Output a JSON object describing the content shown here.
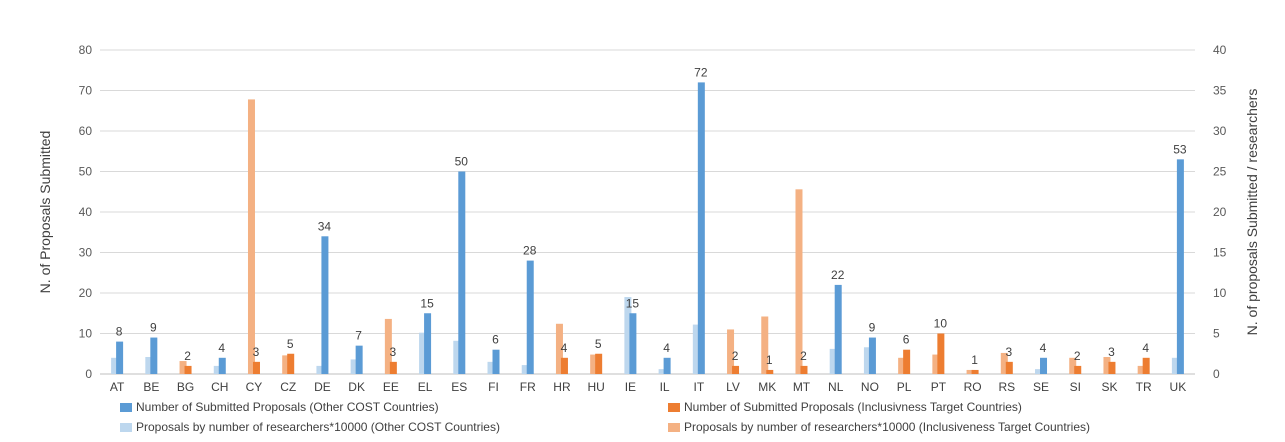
{
  "chart_data": {
    "type": "bar",
    "categories": [
      "AT",
      "BE",
      "BG",
      "CH",
      "CY",
      "CZ",
      "DE",
      "DK",
      "EE",
      "EL",
      "ES",
      "FI",
      "FR",
      "HR",
      "HU",
      "IE",
      "IL",
      "IT",
      "LV",
      "MK",
      "MT",
      "NL",
      "NO",
      "PL",
      "PT",
      "RO",
      "RS",
      "SE",
      "SI",
      "SK",
      "TR",
      "UK"
    ],
    "ylabel": "N. of Proposals Submitted",
    "y2label": "N. of proposals Submitted / researchers",
    "ylim": [
      0,
      80
    ],
    "y2lim": [
      0,
      40
    ],
    "yticks": [
      0,
      10,
      20,
      30,
      40,
      50,
      60,
      70,
      80
    ],
    "y2ticks": [
      0,
      5,
      10,
      15,
      20,
      25,
      30,
      35,
      40
    ],
    "series": [
      {
        "name": "Number of Submitted Proposals (Other COST Countries)",
        "axis": "left",
        "color": "#5b9bd5",
        "values": [
          8,
          9,
          null,
          4,
          null,
          null,
          34,
          7,
          null,
          15,
          50,
          6,
          28,
          null,
          null,
          15,
          4,
          72,
          null,
          null,
          null,
          22,
          9,
          null,
          null,
          null,
          null,
          4,
          null,
          null,
          null,
          53
        ]
      },
      {
        "name": "Number of Submitted Proposals (Inclusivness Target Countries)",
        "axis": "left",
        "color": "#ed7d31",
        "values": [
          null,
          null,
          2,
          null,
          3,
          5,
          null,
          null,
          3,
          null,
          null,
          null,
          null,
          4,
          5,
          null,
          null,
          null,
          2,
          1,
          2,
          null,
          null,
          6,
          10,
          1,
          3,
          null,
          2,
          3,
          4,
          null
        ]
      },
      {
        "name": "Proposals by number of researchers*10000 (Other COST Countries)",
        "axis": "right",
        "color": "#bdd7ee",
        "values": [
          2.0,
          2.1,
          null,
          1.0,
          null,
          null,
          1.0,
          1.8,
          null,
          5.1,
          4.1,
          1.5,
          1.1,
          null,
          null,
          9.5,
          0.6,
          6.1,
          null,
          null,
          null,
          3.1,
          3.3,
          null,
          null,
          null,
          null,
          0.6,
          null,
          null,
          null,
          2.0
        ]
      },
      {
        "name": "Proposals by number of researchers*10000 (Inclusiveness Target Countries)",
        "axis": "right",
        "color": "#f4b183",
        "values": [
          null,
          null,
          1.6,
          null,
          33.9,
          2.3,
          null,
          null,
          6.8,
          null,
          null,
          null,
          null,
          6.2,
          2.4,
          null,
          null,
          null,
          5.5,
          7.1,
          22.8,
          null,
          null,
          2.0,
          2.4,
          0.5,
          2.6,
          null,
          2.0,
          2.1,
          1.0,
          null
        ]
      }
    ],
    "data_labels": [
      "8",
      "9",
      "2",
      "4",
      "3",
      "5",
      "34",
      "7",
      "3",
      "15",
      "50",
      "6",
      "28",
      "4",
      "5",
      "15",
      "4",
      "72",
      "2",
      "1",
      "2",
      "22",
      "9",
      "6",
      "10",
      "1",
      "3",
      "4",
      "2",
      "3",
      "4",
      "53"
    ]
  }
}
